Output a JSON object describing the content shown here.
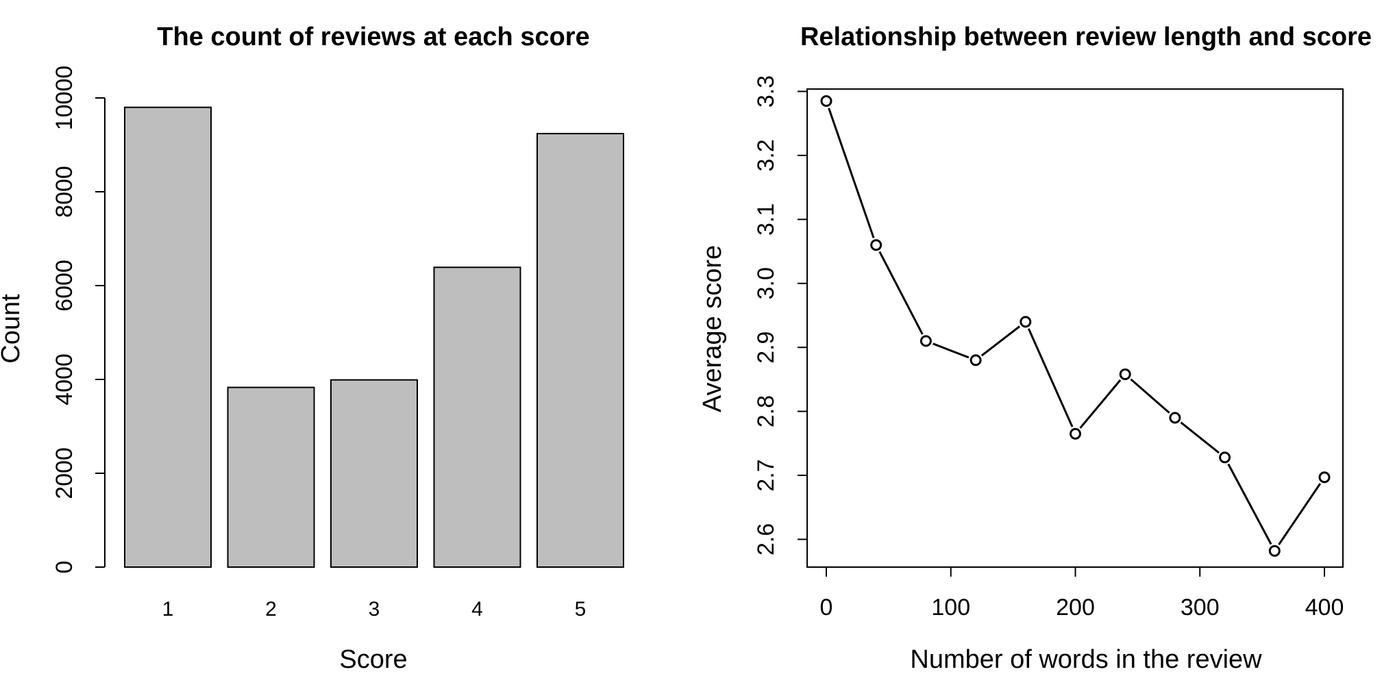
{
  "chart_data": [
    {
      "type": "bar",
      "title": "The count of reviews at each score",
      "xlabel": "Score",
      "ylabel": "Count",
      "categories": [
        "1",
        "2",
        "3",
        "4",
        "5"
      ],
      "values": [
        9800,
        3830,
        3990,
        6390,
        9240
      ],
      "ylim": [
        0,
        10000
      ],
      "yticks": [
        0,
        2000,
        4000,
        6000,
        8000,
        10000
      ],
      "bar_color": "#bebebe",
      "grid": false
    },
    {
      "type": "line",
      "title": "Relationship between review length and score",
      "xlabel": "Number of words in the review",
      "ylabel": "Average score",
      "x": [
        0,
        40,
        80,
        120,
        160,
        200,
        240,
        280,
        320,
        360,
        400
      ],
      "values": [
        3.285,
        3.06,
        2.91,
        2.88,
        2.94,
        2.765,
        2.858,
        2.79,
        2.728,
        2.582,
        2.697
      ],
      "xticks": [
        0,
        100,
        200,
        300,
        400
      ],
      "yticks": [
        "2.6",
        "2.7",
        "2.8",
        "2.9",
        "3.0",
        "3.1",
        "3.2",
        "3.3"
      ],
      "markers": "open-circle",
      "grid": false
    }
  ]
}
